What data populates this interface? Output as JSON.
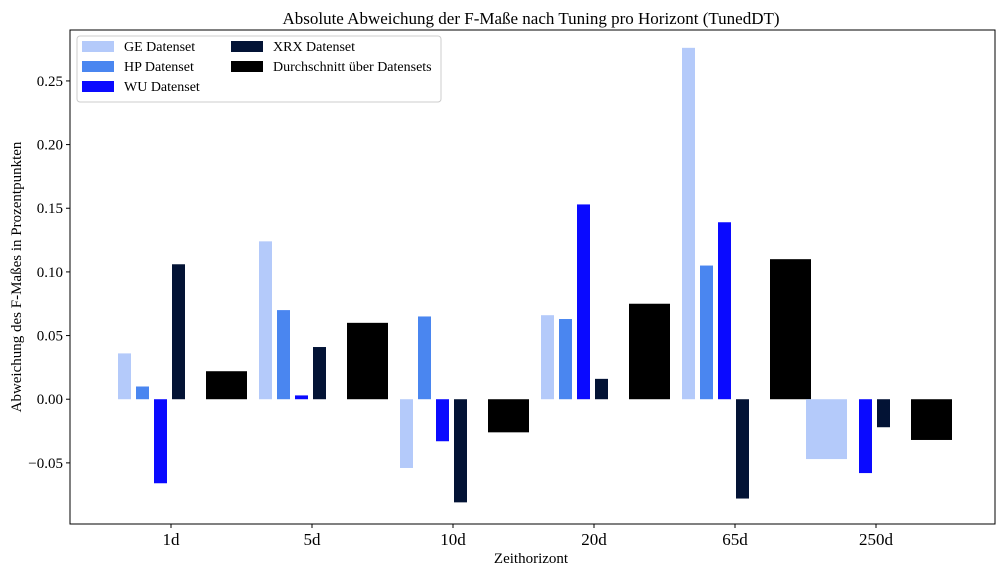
{
  "chart_data": {
    "type": "bar",
    "title": "Absolute Abweichung der F-Maße nach Tuning pro Horizont (TunedDT)",
    "xlabel": "Zeithorizont",
    "ylabel": "Abweichung des F-Maßes in Prozentpunkten",
    "categories": [
      "1d",
      "5d",
      "10d",
      "20d",
      "65d",
      "250d"
    ],
    "ylim": [
      -0.098,
      0.29
    ],
    "yticks": [
      -0.05,
      0.0,
      0.05,
      0.1,
      0.15,
      0.2,
      0.25
    ],
    "ytick_labels": [
      "−0.05",
      "0.00",
      "0.05",
      "0.10",
      "0.15",
      "0.20",
      "0.25"
    ],
    "grid": false,
    "legend_position": "top-left",
    "series": [
      {
        "name": "GE Datenset",
        "color": "#b4cafa",
        "values": [
          0.036,
          0.124,
          -0.054,
          0.066,
          0.276,
          -0.047
        ]
      },
      {
        "name": "HP Datenset",
        "color": "#4a86f0",
        "values": [
          0.01,
          0.07,
          0.065,
          0.063,
          0.105,
          0.0
        ]
      },
      {
        "name": "WU Datenset",
        "color": "#0a0aff",
        "values": [
          -0.066,
          0.003,
          -0.033,
          0.153,
          0.139,
          -0.058
        ]
      },
      {
        "name": "XRX Datenset",
        "color": "#031335",
        "values": [
          0.106,
          0.041,
          -0.081,
          0.016,
          -0.078,
          -0.022
        ]
      },
      {
        "name": "Durchschnitt über Datensets",
        "color": "#000000",
        "values": [
          0.022,
          0.06,
          -0.026,
          0.075,
          0.11,
          -0.032
        ]
      }
    ]
  }
}
